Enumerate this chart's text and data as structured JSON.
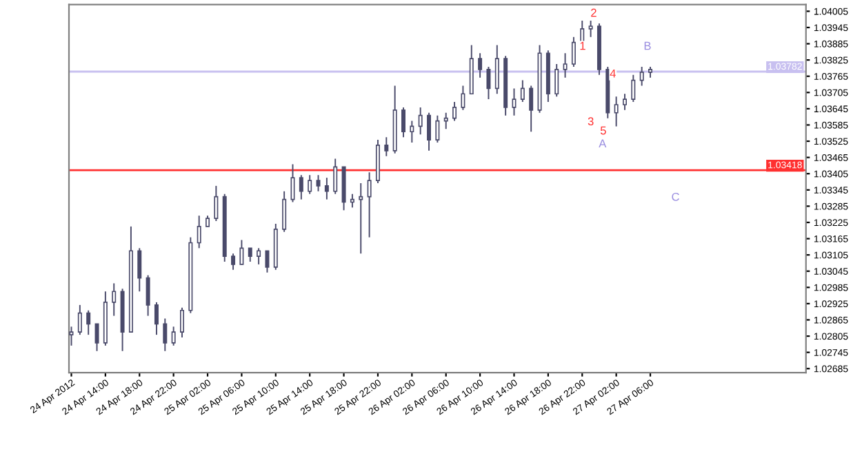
{
  "chart_data": {
    "type": "candlestick",
    "x": [
      "2012-04-24T10:00",
      "2012-04-24T11:00",
      "2012-04-24T12:00",
      "2012-04-24T13:00",
      "2012-04-24T14:00",
      "2012-04-24T15:00",
      "2012-04-24T16:00",
      "2012-04-24T17:00",
      "2012-04-24T18:00",
      "2012-04-24T19:00",
      "2012-04-24T20:00",
      "2012-04-24T21:00",
      "2012-04-24T22:00",
      "2012-04-24T23:00",
      "2012-04-25T00:00",
      "2012-04-25T01:00",
      "2012-04-25T02:00",
      "2012-04-25T03:00",
      "2012-04-25T04:00",
      "2012-04-25T05:00",
      "2012-04-25T06:00",
      "2012-04-25T07:00",
      "2012-04-25T08:00",
      "2012-04-25T09:00",
      "2012-04-25T10:00",
      "2012-04-25T11:00",
      "2012-04-25T12:00",
      "2012-04-25T13:00",
      "2012-04-25T14:00",
      "2012-04-25T15:00",
      "2012-04-25T16:00",
      "2012-04-25T17:00",
      "2012-04-25T18:00",
      "2012-04-25T19:00",
      "2012-04-25T20:00",
      "2012-04-25T21:00",
      "2012-04-25T22:00",
      "2012-04-25T23:00",
      "2012-04-26T00:00",
      "2012-04-26T01:00",
      "2012-04-26T02:00",
      "2012-04-26T03:00",
      "2012-04-26T04:00",
      "2012-04-26T05:00",
      "2012-04-26T06:00",
      "2012-04-26T07:00",
      "2012-04-26T08:00",
      "2012-04-26T09:00",
      "2012-04-26T10:00",
      "2012-04-26T11:00",
      "2012-04-26T12:00",
      "2012-04-26T13:00",
      "2012-04-26T14:00",
      "2012-04-26T15:00",
      "2012-04-26T16:00",
      "2012-04-26T17:00",
      "2012-04-26T18:00",
      "2012-04-26T19:00",
      "2012-04-26T20:00",
      "2012-04-26T21:00",
      "2012-04-26T22:00",
      "2012-04-26T23:00",
      "2012-04-27T00:00",
      "2012-04-27T01:00",
      "2012-04-27T02:00",
      "2012-04-27T03:00",
      "2012-04-27T04:00",
      "2012-04-27T05:00",
      "2012-04-27T06:00"
    ],
    "ohlc": [
      [
        1.0281,
        1.0284,
        1.0277,
        1.0282
      ],
      [
        1.0282,
        1.0292,
        1.0281,
        1.0289
      ],
      [
        1.0289,
        1.029,
        1.0281,
        1.0285
      ],
      [
        1.0285,
        1.0285,
        1.0275,
        1.0278
      ],
      [
        1.0278,
        1.0297,
        1.0277,
        1.0293
      ],
      [
        1.0293,
        1.03,
        1.0288,
        1.0297
      ],
      [
        1.0297,
        1.0298,
        1.0275,
        1.0282
      ],
      [
        1.0282,
        1.0321,
        1.0282,
        1.0312
      ],
      [
        1.0312,
        1.0313,
        1.0297,
        1.0302
      ],
      [
        1.0302,
        1.0303,
        1.0288,
        1.0292
      ],
      [
        1.0292,
        1.0293,
        1.0281,
        1.0285
      ],
      [
        1.0285,
        1.0287,
        1.0275,
        1.0278
      ],
      [
        1.0278,
        1.0284,
        1.0277,
        1.0282
      ],
      [
        1.0282,
        1.0291,
        1.028,
        1.029
      ],
      [
        1.029,
        1.0317,
        1.0289,
        1.0315
      ],
      [
        1.0315,
        1.0325,
        1.0313,
        1.0321
      ],
      [
        1.0321,
        1.0325,
        1.0321,
        1.0324
      ],
      [
        1.0324,
        1.0336,
        1.0323,
        1.0332
      ],
      [
        1.0332,
        1.0333,
        1.0308,
        1.031
      ],
      [
        1.031,
        1.0311,
        1.0305,
        1.0307
      ],
      [
        1.0307,
        1.0316,
        1.0307,
        1.0313
      ],
      [
        1.0313,
        1.0313,
        1.0308,
        1.031
      ],
      [
        1.031,
        1.0313,
        1.0307,
        1.0312
      ],
      [
        1.0312,
        1.0312,
        1.0304,
        1.0306
      ],
      [
        1.0306,
        1.0322,
        1.0305,
        1.032
      ],
      [
        1.032,
        1.0334,
        1.0319,
        1.0331
      ],
      [
        1.0331,
        1.0344,
        1.033,
        1.0339
      ],
      [
        1.0339,
        1.034,
        1.0331,
        1.0334
      ],
      [
        1.0334,
        1.034,
        1.0333,
        1.0338
      ],
      [
        1.0338,
        1.034,
        1.0334,
        1.0336
      ],
      [
        1.0336,
        1.0339,
        1.0331,
        1.0334
      ],
      [
        1.0334,
        1.0346,
        1.0333,
        1.0343
      ],
      [
        1.0343,
        1.0343,
        1.0327,
        1.033
      ],
      [
        1.033,
        1.0333,
        1.0328,
        1.0331
      ],
      [
        1.0331,
        1.0337,
        1.0311,
        1.0332
      ],
      [
        1.0332,
        1.0341,
        1.0317,
        1.0338
      ],
      [
        1.0338,
        1.0353,
        1.0337,
        1.0351
      ],
      [
        1.0351,
        1.0354,
        1.0347,
        1.0349
      ],
      [
        1.0349,
        1.0373,
        1.0348,
        1.0364
      ],
      [
        1.0364,
        1.0365,
        1.0354,
        1.0356
      ],
      [
        1.0356,
        1.036,
        1.0352,
        1.0358
      ],
      [
        1.0358,
        1.0365,
        1.0355,
        1.0362
      ],
      [
        1.0362,
        1.0363,
        1.0349,
        1.0353
      ],
      [
        1.0353,
        1.0362,
        1.0352,
        1.036
      ],
      [
        1.036,
        1.0363,
        1.0357,
        1.0361
      ],
      [
        1.0361,
        1.0367,
        1.036,
        1.0365
      ],
      [
        1.0365,
        1.0373,
        1.0364,
        1.037
      ],
      [
        1.037,
        1.0388,
        1.037,
        1.0383
      ],
      [
        1.0383,
        1.0385,
        1.0376,
        1.0379
      ],
      [
        1.0379,
        1.038,
        1.0368,
        1.0372
      ],
      [
        1.0372,
        1.0388,
        1.037,
        1.0383
      ],
      [
        1.0383,
        1.0384,
        1.0362,
        1.0365
      ],
      [
        1.0365,
        1.0372,
        1.0362,
        1.0368
      ],
      [
        1.0368,
        1.0375,
        1.0367,
        1.0372
      ],
      [
        1.0372,
        1.0373,
        1.0356,
        1.0364
      ],
      [
        1.0364,
        1.0388,
        1.0363,
        1.0385
      ],
      [
        1.0385,
        1.0386,
        1.0367,
        1.037
      ],
      [
        1.037,
        1.0381,
        1.0369,
        1.0379
      ],
      [
        1.0379,
        1.0385,
        1.0376,
        1.0381
      ],
      [
        1.0381,
        1.0391,
        1.038,
        1.0389
      ],
      [
        1.0389,
        1.0397,
        1.0388,
        1.0394
      ],
      [
        1.0394,
        1.0397,
        1.0391,
        1.0395
      ],
      [
        1.0395,
        1.0396,
        1.0377,
        1.0379
      ],
      [
        1.0379,
        1.038,
        1.0361,
        1.0363
      ],
      [
        1.0363,
        1.0369,
        1.0358,
        1.0366
      ],
      [
        1.0366,
        1.037,
        1.0364,
        1.0368
      ],
      [
        1.0368,
        1.0377,
        1.0367,
        1.0375
      ],
      [
        1.0375,
        1.038,
        1.0373,
        1.0378
      ],
      [
        1.0378,
        1.038,
        1.0376,
        1.0379
      ]
    ],
    "color": "#4a4a6a",
    "xlim": [
      "2012-04-24T09:43",
      "2012-04-28T00:17"
    ],
    "xticks": [
      {
        "value": "2012-04-24T10:00",
        "label": "24 Apr 2012"
      },
      {
        "value": "2012-04-24T14:00",
        "label": "24 Apr 14:00"
      },
      {
        "value": "2012-04-24T18:00",
        "label": "24 Apr 18:00"
      },
      {
        "value": "2012-04-24T22:00",
        "label": "24 Apr 22:00"
      },
      {
        "value": "2012-04-25T02:00",
        "label": "25 Apr 02:00"
      },
      {
        "value": "2012-04-25T06:00",
        "label": "25 Apr 06:00"
      },
      {
        "value": "2012-04-25T10:00",
        "label": "25 Apr 10:00"
      },
      {
        "value": "2012-04-25T14:00",
        "label": "25 Apr 14:00"
      },
      {
        "value": "2012-04-25T18:00",
        "label": "25 Apr 18:00"
      },
      {
        "value": "2012-04-25T22:00",
        "label": "25 Apr 22:00"
      },
      {
        "value": "2012-04-26T02:00",
        "label": "26 Apr 02:00"
      },
      {
        "value": "2012-04-26T06:00",
        "label": "26 Apr 06:00"
      },
      {
        "value": "2012-04-26T10:00",
        "label": "26 Apr 10:00"
      },
      {
        "value": "2012-04-26T14:00",
        "label": "26 Apr 14:00"
      },
      {
        "value": "2012-04-26T18:00",
        "label": "26 Apr 18:00"
      },
      {
        "value": "2012-04-26T22:00",
        "label": "26 Apr 22:00"
      },
      {
        "value": "2012-04-27T02:00",
        "label": "27 Apr 02:00"
      },
      {
        "value": "2012-04-27T06:00",
        "label": "27 Apr 06:00"
      }
    ],
    "ylim": [
      1.0267,
      1.0403
    ],
    "yticks": [
      1.04005,
      1.03945,
      1.03885,
      1.03825,
      1.03765,
      1.03705,
      1.03645,
      1.03585,
      1.03525,
      1.03465,
      1.03405,
      1.03345,
      1.03285,
      1.03225,
      1.03165,
      1.03105,
      1.03045,
      1.02985,
      1.02925,
      1.02865,
      1.02805,
      1.02745,
      1.02685
    ],
    "ref_lines": [
      {
        "axis": "y",
        "value": 1.03782,
        "label": "1.03782",
        "color": "#c8c0f0"
      },
      {
        "axis": "y",
        "value": 1.03418,
        "label": "1.03418",
        "color": "#ff3030"
      }
    ],
    "annotations": [
      "1",
      "2",
      "3",
      "4",
      "5",
      "A",
      "B",
      "C"
    ]
  }
}
